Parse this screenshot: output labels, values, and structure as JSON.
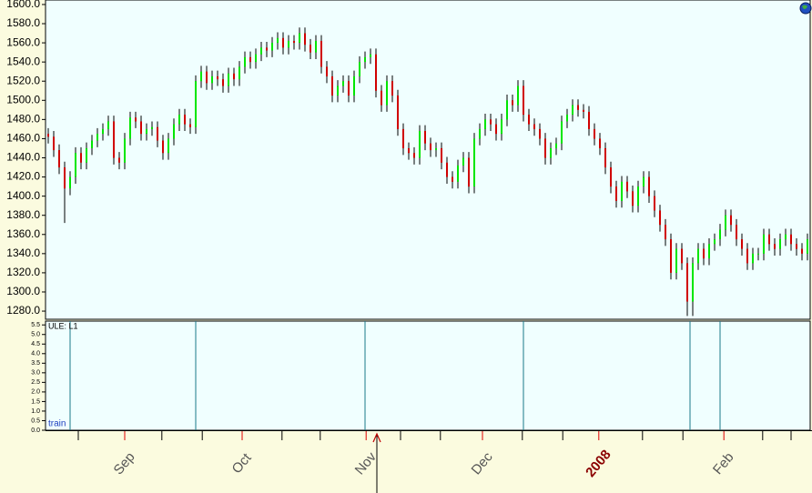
{
  "chart_data": [
    {
      "type": "candlestick",
      "xlim": [
        -0.5,
        139.5
      ],
      "xticks": [
        {
          "value": 14,
          "label": "Sep"
        },
        {
          "value": 35.5,
          "label": "Oct"
        },
        {
          "value": 58.2,
          "label": "Nov"
        },
        {
          "value": 79.5,
          "label": "Dec"
        },
        {
          "value": 100.8,
          "label": "2008"
        },
        {
          "value": 123.7,
          "label": "Feb"
        }
      ],
      "minor_xticks": [
        5.5,
        20.8,
        28.2,
        42.8,
        49.8,
        64.5,
        71.8,
        86.8,
        94.2,
        108.8,
        116.2,
        130.8,
        136
      ],
      "ylim": [
        1271.5,
        1604.7
      ],
      "yticks": [
        {
          "value": 1280,
          "label": "1280.0"
        },
        {
          "value": 1300,
          "label": "1300.0"
        },
        {
          "value": 1320,
          "label": "1320.0"
        },
        {
          "value": 1340,
          "label": "1340.0"
        },
        {
          "value": 1360,
          "label": "1360.0"
        },
        {
          "value": 1380,
          "label": "1380.0"
        },
        {
          "value": 1400,
          "label": "1400.0"
        },
        {
          "value": 1420,
          "label": "1420.0"
        },
        {
          "value": 1440,
          "label": "1440.0"
        },
        {
          "value": 1460,
          "label": "1460.0"
        },
        {
          "value": 1480,
          "label": "1480.0"
        },
        {
          "value": 1500,
          "label": "1500.0"
        },
        {
          "value": 1520,
          "label": "1520.0"
        },
        {
          "value": 1540,
          "label": "1540.0"
        },
        {
          "value": 1560,
          "label": "1560.0"
        },
        {
          "value": 1580,
          "label": "1580.0"
        },
        {
          "value": 1600,
          "label": "1600.0"
        }
      ],
      "up_color": "#00e600",
      "down_color": "#d00000",
      "wick_color": "#000000",
      "open": [
        1465,
        1462,
        1448,
        1430,
        1408,
        1420,
        1445,
        1435,
        1450,
        1458,
        1465,
        1470,
        1478,
        1440,
        1435,
        1460,
        1482,
        1478,
        1465,
        1470,
        1472,
        1458,
        1445,
        1460,
        1475,
        1485,
        1475,
        1472,
        1520,
        1530,
        1518,
        1525,
        1522,
        1515,
        1528,
        1522,
        1535,
        1545,
        1540,
        1548,
        1555,
        1552,
        1560,
        1565,
        1555,
        1562,
        1560,
        1570,
        1558,
        1550,
        1562,
        1535,
        1525,
        1505,
        1515,
        1520,
        1505,
        1525,
        1540,
        1545,
        1548,
        1510,
        1495,
        1520,
        1505,
        1470,
        1450,
        1445,
        1440,
        1468,
        1455,
        1448,
        1450,
        1435,
        1420,
        1415,
        1432,
        1440,
        1410,
        1460,
        1470,
        1480,
        1475,
        1465,
        1480,
        1500,
        1495,
        1515,
        1485,
        1475,
        1470,
        1460,
        1440,
        1450,
        1455,
        1478,
        1485,
        1495,
        1490,
        1488,
        1470,
        1460,
        1450,
        1430,
        1410,
        1395,
        1415,
        1405,
        1390,
        1410,
        1420,
        1400,
        1385,
        1370,
        1355,
        1320,
        1345,
        1330,
        1290,
        1330,
        1345,
        1335,
        1350,
        1355,
        1365,
        1380,
        1370,
        1355,
        1345,
        1330,
        1340,
        1340,
        1360,
        1350,
        1345,
        1355,
        1360,
        1350,
        1345,
        1340
      ],
      "high": [
        1471,
        1468,
        1454,
        1436,
        1426,
        1451,
        1451,
        1456,
        1464,
        1471,
        1476,
        1484,
        1484,
        1446,
        1466,
        1488,
        1488,
        1484,
        1476,
        1478,
        1478,
        1464,
        1466,
        1481,
        1491,
        1491,
        1481,
        1526,
        1536,
        1536,
        1531,
        1531,
        1528,
        1534,
        1534,
        1541,
        1551,
        1551,
        1554,
        1561,
        1561,
        1566,
        1571,
        1571,
        1568,
        1568,
        1576,
        1576,
        1564,
        1568,
        1568,
        1541,
        1531,
        1521,
        1526,
        1526,
        1531,
        1546,
        1551,
        1554,
        1554,
        1516,
        1526,
        1526,
        1511,
        1476,
        1456,
        1451,
        1474,
        1474,
        1461,
        1456,
        1456,
        1441,
        1426,
        1438,
        1446,
        1446,
        1466,
        1476,
        1486,
        1486,
        1481,
        1486,
        1506,
        1506,
        1521,
        1521,
        1491,
        1481,
        1476,
        1466,
        1456,
        1461,
        1484,
        1491,
        1501,
        1501,
        1496,
        1494,
        1476,
        1466,
        1456,
        1436,
        1416,
        1421,
        1421,
        1411,
        1416,
        1426,
        1426,
        1406,
        1391,
        1376,
        1361,
        1351,
        1351,
        1336,
        1336,
        1351,
        1351,
        1356,
        1361,
        1371,
        1386,
        1386,
        1376,
        1361,
        1351,
        1346,
        1346,
        1366,
        1366,
        1356,
        1361,
        1366,
        1366,
        1356,
        1351,
        1361
      ],
      "low": [
        1455,
        1441,
        1423,
        1372,
        1401,
        1413,
        1428,
        1428,
        1443,
        1451,
        1458,
        1463,
        1433,
        1428,
        1428,
        1453,
        1471,
        1458,
        1458,
        1463,
        1451,
        1438,
        1438,
        1453,
        1468,
        1468,
        1465,
        1465,
        1513,
        1511,
        1511,
        1515,
        1508,
        1508,
        1515,
        1515,
        1528,
        1533,
        1533,
        1541,
        1545,
        1545,
        1553,
        1548,
        1548,
        1553,
        1553,
        1551,
        1543,
        1543,
        1528,
        1518,
        1498,
        1498,
        1508,
        1498,
        1498,
        1518,
        1533,
        1538,
        1503,
        1488,
        1488,
        1498,
        1463,
        1443,
        1438,
        1433,
        1433,
        1448,
        1441,
        1441,
        1428,
        1413,
        1408,
        1408,
        1425,
        1403,
        1403,
        1453,
        1463,
        1468,
        1458,
        1458,
        1473,
        1488,
        1488,
        1478,
        1468,
        1463,
        1453,
        1433,
        1433,
        1443,
        1448,
        1471,
        1478,
        1483,
        1481,
        1463,
        1453,
        1443,
        1423,
        1403,
        1388,
        1388,
        1398,
        1383,
        1383,
        1403,
        1393,
        1378,
        1363,
        1348,
        1313,
        1313,
        1323,
        1275,
        1275,
        1323,
        1328,
        1328,
        1343,
        1348,
        1358,
        1363,
        1348,
        1338,
        1323,
        1323,
        1333,
        1333,
        1343,
        1338,
        1338,
        1348,
        1343,
        1338,
        1333,
        1333
      ],
      "close": [
        1462,
        1448,
        1430,
        1408,
        1420,
        1445,
        1435,
        1450,
        1458,
        1465,
        1470,
        1478,
        1440,
        1435,
        1460,
        1482,
        1478,
        1465,
        1470,
        1472,
        1458,
        1445,
        1460,
        1475,
        1485,
        1475,
        1472,
        1520,
        1530,
        1518,
        1525,
        1522,
        1515,
        1528,
        1522,
        1535,
        1545,
        1540,
        1548,
        1555,
        1552,
        1560,
        1565,
        1555,
        1562,
        1560,
        1570,
        1558,
        1550,
        1562,
        1535,
        1525,
        1505,
        1515,
        1520,
        1505,
        1525,
        1540,
        1545,
        1548,
        1510,
        1495,
        1520,
        1505,
        1470,
        1450,
        1445,
        1440,
        1468,
        1455,
        1448,
        1450,
        1435,
        1420,
        1415,
        1432,
        1440,
        1410,
        1460,
        1470,
        1480,
        1475,
        1465,
        1480,
        1500,
        1495,
        1515,
        1485,
        1475,
        1470,
        1460,
        1440,
        1450,
        1455,
        1478,
        1485,
        1495,
        1490,
        1488,
        1470,
        1460,
        1450,
        1430,
        1410,
        1395,
        1415,
        1405,
        1390,
        1410,
        1420,
        1400,
        1385,
        1370,
        1355,
        1320,
        1345,
        1330,
        1290,
        1330,
        1345,
        1335,
        1350,
        1355,
        1365,
        1380,
        1370,
        1355,
        1345,
        1330,
        1340,
        1340,
        1360,
        1350,
        1345,
        1355,
        1360,
        1350,
        1345,
        1340,
        1355
      ]
    },
    {
      "type": "spikes",
      "title": "ULE: L1",
      "annotation": "train",
      "xlim": [
        -0.5,
        139.5
      ],
      "ylim": [
        0,
        5.7
      ],
      "yticks": [
        {
          "value": 0,
          "label": "0.0"
        },
        {
          "value": 0.5,
          "label": "0.5"
        },
        {
          "value": 1,
          "label": "1.0"
        },
        {
          "value": 1.5,
          "label": "1.5"
        },
        {
          "value": 2,
          "label": "2.0"
        },
        {
          "value": 2.5,
          "label": "2.5"
        },
        {
          "value": 3,
          "label": "3.0"
        },
        {
          "value": 3.5,
          "label": "3.5"
        },
        {
          "value": 4,
          "label": "4.0"
        },
        {
          "value": 4.5,
          "label": "4.5"
        },
        {
          "value": 5,
          "label": "5.0"
        },
        {
          "value": 5.5,
          "label": "5.5"
        }
      ],
      "x": [
        4,
        27,
        58,
        87,
        117.5,
        123
      ],
      "values": [
        5.7,
        5.7,
        5.7,
        5.7,
        5.7,
        5.7
      ],
      "color": "#1a7a8a"
    }
  ]
}
